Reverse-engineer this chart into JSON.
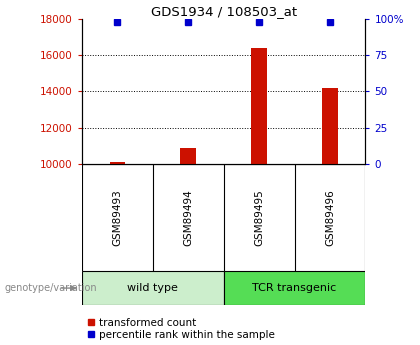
{
  "title": "GDS1934 / 108503_at",
  "samples": [
    "GSM89493",
    "GSM89494",
    "GSM89495",
    "GSM89496"
  ],
  "transformed_counts": [
    10100,
    10900,
    16400,
    14200
  ],
  "percentile_ranks": [
    98,
    98,
    98,
    98
  ],
  "bar_color": "#cc1100",
  "dot_color": "#0000cc",
  "ylim_left": [
    10000,
    18000
  ],
  "yticks_left": [
    10000,
    12000,
    14000,
    16000,
    18000
  ],
  "ytick_labels_left": [
    "10000",
    "12000",
    "14000",
    "16000",
    "18000"
  ],
  "yticks_right": [
    0,
    25,
    50,
    75,
    100
  ],
  "ytick_labels_right": [
    "0",
    "25",
    "50",
    "75",
    "100%"
  ],
  "grid_values": [
    12000,
    14000,
    16000
  ],
  "left_color": "#cc1100",
  "right_color": "#0000cc",
  "background_color": "#ffffff",
  "sample_label_bg": "#c8c8c8",
  "group1_label": "wild type",
  "group2_label": "TCR transgenic",
  "group1_bg": "#cceecc",
  "group2_bg": "#55dd55",
  "legend_red_label": "transformed count",
  "legend_blue_label": "percentile rank within the sample",
  "genotype_label": "genotype/variation"
}
